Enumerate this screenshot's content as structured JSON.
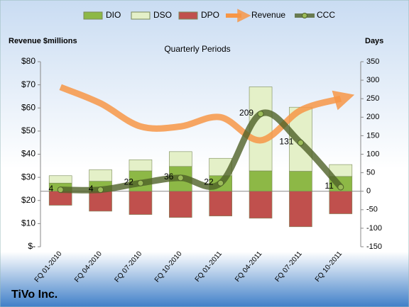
{
  "chart_data": {
    "type": "combo",
    "title": "Quarterly Periods",
    "y_label": "Revenue $millions",
    "y2_label": "Days",
    "company": "TiVo Inc.",
    "categories": [
      "FQ 01-2010",
      "FQ 04-2010",
      "FQ 07-2010",
      "FQ 10-2010",
      "FQ 01-2011",
      "FQ 04-2011",
      "FQ 07-2011",
      "FQ 10-2011"
    ],
    "series": [
      {
        "name": "DIO",
        "color": "#8db846",
        "kind": "stack",
        "axis": "y2",
        "values": [
          22,
          27,
          55,
          67,
          42,
          55,
          54,
          40
        ]
      },
      {
        "name": "DSO",
        "color": "#e4f0c8",
        "kind": "stack",
        "axis": "y2",
        "values": [
          20,
          31,
          30,
          40,
          47,
          227,
          173,
          32
        ]
      },
      {
        "name": "DPO",
        "color": "#c0504d",
        "kind": "stack",
        "axis": "y2",
        "values": [
          -38,
          -54,
          -63,
          -71,
          -67,
          -73,
          -96,
          -61
        ]
      },
      {
        "name": "Revenue",
        "color": "#f79646",
        "kind": "arrow",
        "axis": "y",
        "values": [
          69,
          62,
          52,
          52,
          56,
          46,
          59,
          64
        ]
      },
      {
        "name": "CCC",
        "color": "#4f6228",
        "kind": "line",
        "axis": "y2",
        "values": [
          4,
          4,
          22,
          36,
          22,
          209,
          131,
          11
        ]
      }
    ],
    "ylim": [
      0,
      80
    ],
    "yticks": [
      {
        "value": 0,
        "label": "$-"
      },
      {
        "value": 10,
        "label": "$10"
      },
      {
        "value": 20,
        "label": "$20"
      },
      {
        "value": 30,
        "label": "$30"
      },
      {
        "value": 40,
        "label": "$40"
      },
      {
        "value": 50,
        "label": "$50"
      },
      {
        "value": 60,
        "label": "$60"
      },
      {
        "value": 70,
        "label": "$70"
      },
      {
        "value": 80,
        "label": "$80"
      }
    ],
    "y2lim": [
      -150,
      350
    ],
    "y2ticks": [
      -150,
      -100,
      -50,
      0,
      50,
      100,
      150,
      200,
      250,
      300,
      350
    ]
  }
}
